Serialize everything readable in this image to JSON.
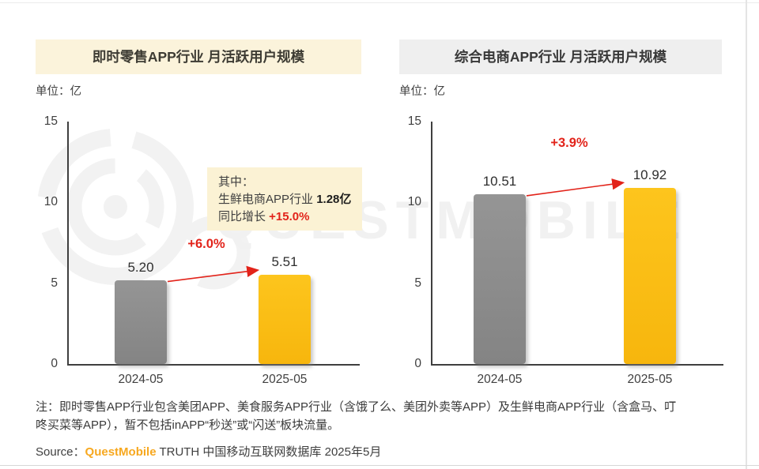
{
  "watermark_text": "QUESTMOBILE",
  "chart_data": [
    {
      "type": "bar",
      "title": "即时零售APP行业 月活跃用户规模",
      "unit": "单位：亿",
      "categories": [
        "2024-05",
        "2025-05"
      ],
      "values": [
        5.2,
        5.51
      ],
      "value_labels": [
        "5.20",
        "5.51"
      ],
      "yoy_growth": "+6.0%",
      "ylim": [
        0,
        15
      ],
      "y_ticks": [
        15,
        10,
        5,
        0
      ],
      "bar_colors": [
        "#8D8D8D",
        "#FBBE17"
      ],
      "grid": false,
      "annotation": {
        "intro": "其中：",
        "industry": "生鲜电商APP行业 ",
        "value": "1.28亿",
        "growth_prefix": "同比增长 ",
        "growth": "+15.0%"
      }
    },
    {
      "type": "bar",
      "title": "综合电商APP行业 月活跃用户规模",
      "unit": "单位：亿",
      "categories": [
        "2024-05",
        "2025-05"
      ],
      "values": [
        10.51,
        10.92
      ],
      "value_labels": [
        "10.51",
        "10.92"
      ],
      "yoy_growth": "+3.9%",
      "ylim": [
        0,
        15
      ],
      "y_ticks": [
        15,
        10,
        5,
        0
      ],
      "bar_colors": [
        "#8D8D8D",
        "#FBBE17"
      ],
      "grid": false
    }
  ],
  "note": {
    "line1": "注：即时零售APP行业包含美团APP、美食服务APP行业（含饿了么、美团外卖等APP）及生鲜电商APP行业（含盒马、叮",
    "line2": "咚买菜等APP），暂不包括inAPP“秒送”或“闪送”板块流量。"
  },
  "source": {
    "prefix": "Source：",
    "brand": "QuestMobile",
    "rest": " TRUTH 中国移动互联网数据库 2025年5月"
  },
  "colors": {
    "bar_gray": "#8D8D8D",
    "bar_yellow": "#FBBE17",
    "accent_red": "#E2231A",
    "title_bg_left": "#FBF3DB",
    "title_bg_right": "#EFEFEF",
    "callout_bg": "#FBF2D4",
    "brand_orange": "#F7A81F",
    "watermark_gray": "#F1F1F1"
  }
}
